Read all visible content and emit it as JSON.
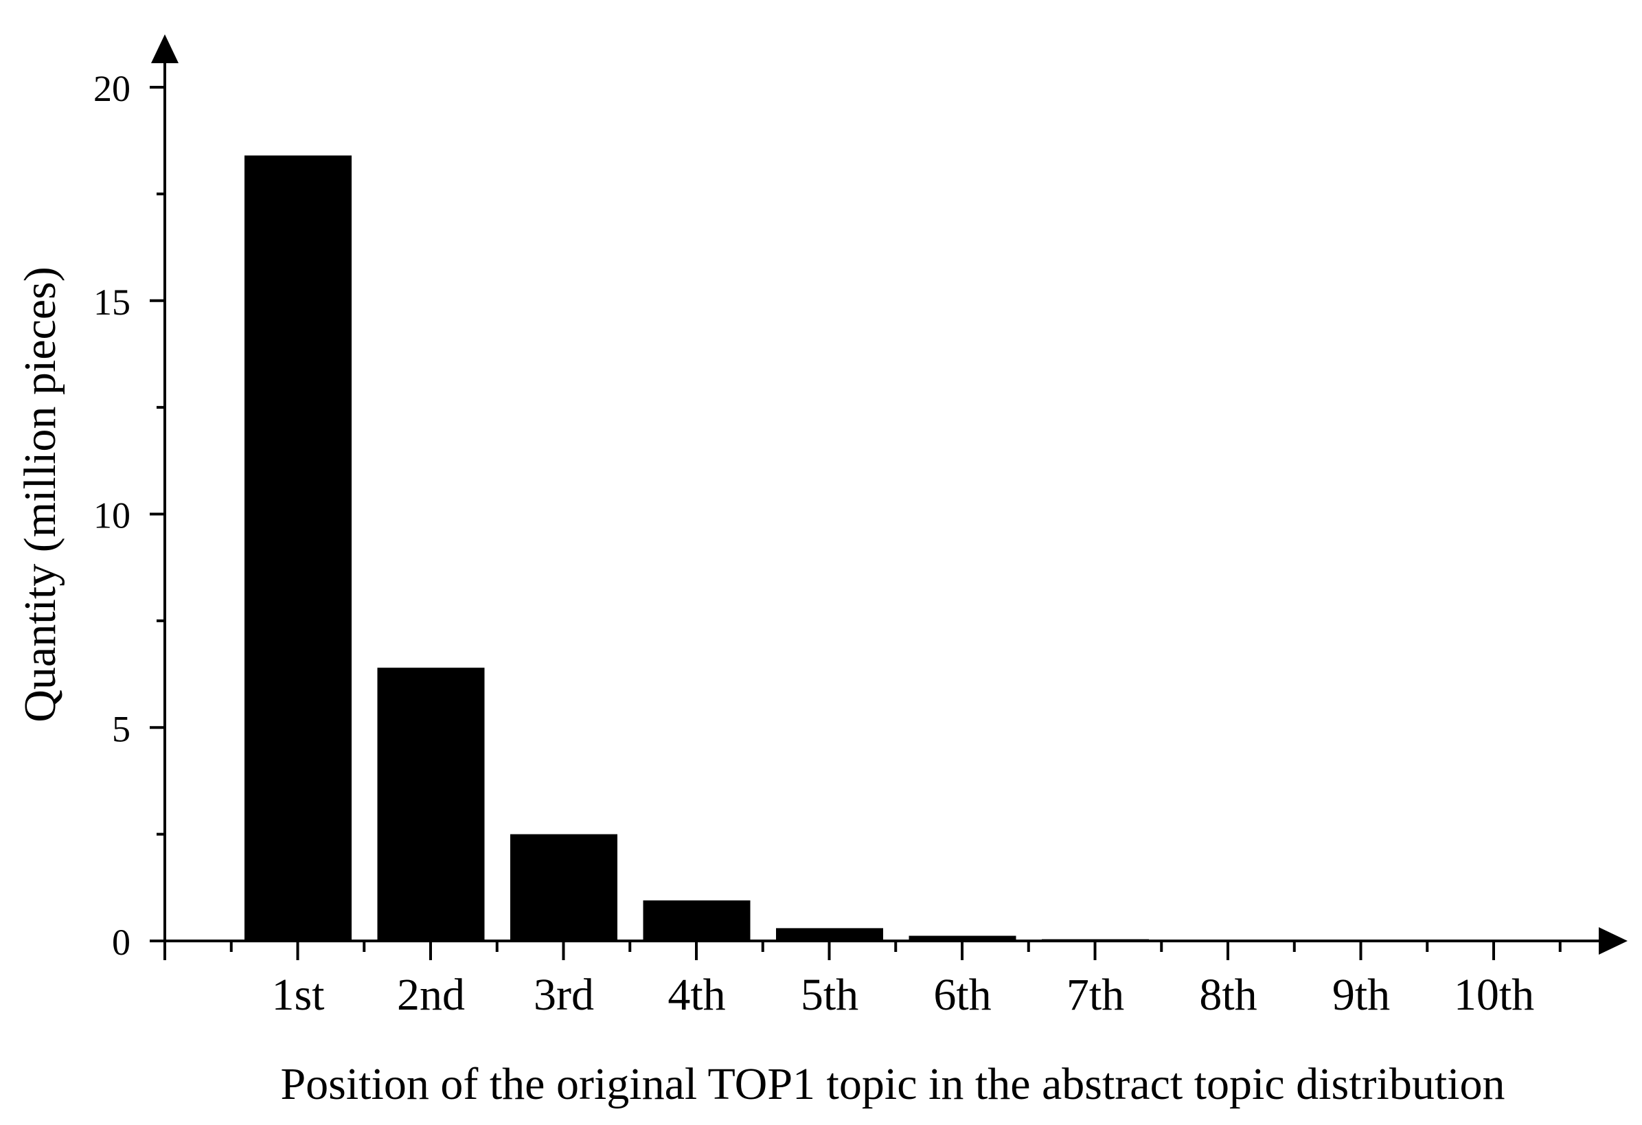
{
  "chart_data": {
    "type": "bar",
    "categories": [
      "1st",
      "2nd",
      "3rd",
      "4th",
      "5th",
      "6th",
      "7th",
      "8th",
      "9th",
      "10th"
    ],
    "values": [
      18.4,
      6.4,
      2.5,
      0.95,
      0.3,
      0.12,
      0.04,
      0.01,
      0.005,
      0.002
    ],
    "xlabel": "Position of the original TOP1 topic in the abstract topic distribution",
    "ylabel": "Quantity (million pieces)",
    "ylim": [
      0,
      20
    ],
    "yticks": [
      "0",
      "5",
      "10",
      "15",
      "20"
    ],
    "grid": false,
    "bar_color": "#000000",
    "axis_color": "#000000"
  }
}
